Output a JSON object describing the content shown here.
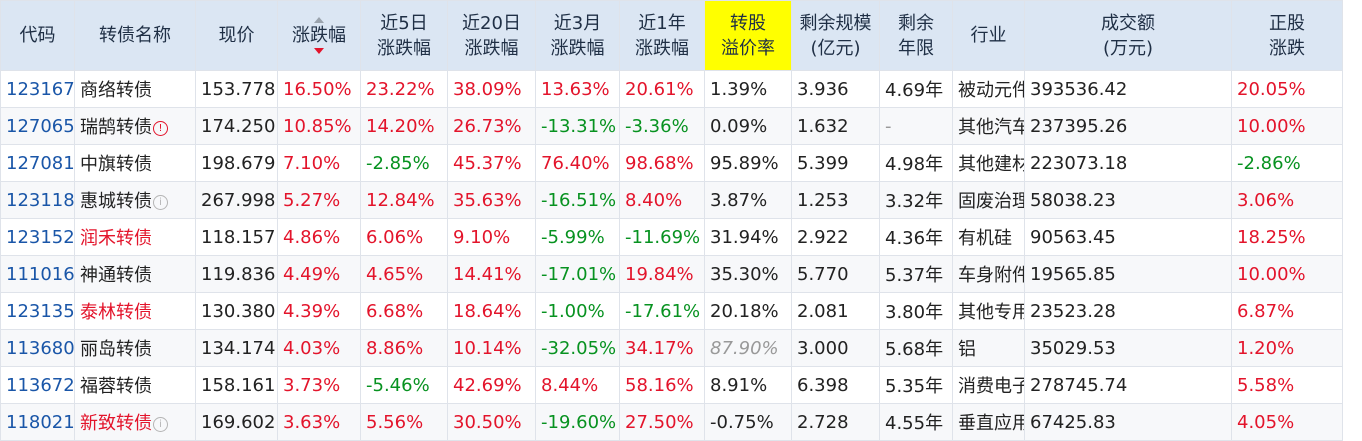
{
  "headers": {
    "code": "代码",
    "name": "转债名称",
    "price": "现价",
    "chg": "涨跌幅",
    "chg5d_1": "近5日",
    "chg5d_2": "涨跌幅",
    "chg20d_1": "近20日",
    "chg20d_2": "涨跌幅",
    "chg3m_1": "近3月",
    "chg3m_2": "涨跌幅",
    "chg1y_1": "近1年",
    "chg1y_2": "涨跌幅",
    "prem_1": "转股",
    "prem_2": "溢价率",
    "scale_1": "剩余规模",
    "scale_2": "(亿元)",
    "term_1": "剩余",
    "term_2": "年限",
    "industry": "行业",
    "volume_1": "成交额",
    "volume_2": "(万元)",
    "stock_chg_1": "正股",
    "stock_chg_2": "涨跌"
  },
  "rows": [
    {
      "code": "123167",
      "name": "商络转债",
      "name_color": "normal",
      "badge": "",
      "price": "153.778",
      "chg": "16.50%",
      "chg5d": "23.22%",
      "chg20d": "38.09%",
      "chg3m": "13.63%",
      "chg1y": "20.61%",
      "premium": "1.39%",
      "premium_style": "normal",
      "scale": "3.936",
      "term": "4.69年",
      "industry": "被动元件",
      "volume": "393536.42",
      "stock_chg": "20.05%"
    },
    {
      "code": "127065",
      "name": "瑞鹄转债",
      "name_color": "normal",
      "badge": "red",
      "price": "174.250",
      "chg": "10.85%",
      "chg5d": "14.20%",
      "chg20d": "26.73%",
      "chg3m": "-13.31%",
      "chg1y": "-3.36%",
      "premium": "0.09%",
      "premium_style": "normal",
      "scale": "1.632",
      "term": "-",
      "industry": "其他汽车零部件",
      "volume": "237395.26",
      "stock_chg": "10.00%"
    },
    {
      "code": "127081",
      "name": "中旗转债",
      "name_color": "normal",
      "badge": "",
      "price": "198.679",
      "chg": "7.10%",
      "chg5d": "-2.85%",
      "chg20d": "45.37%",
      "chg3m": "76.40%",
      "chg1y": "98.68%",
      "premium": "95.89%",
      "premium_style": "normal",
      "scale": "5.399",
      "term": "4.98年",
      "industry": "其他建材",
      "volume": "223073.18",
      "stock_chg": "-2.86%"
    },
    {
      "code": "123118",
      "name": "惠城转债",
      "name_color": "normal",
      "badge": "grey",
      "price": "267.998",
      "chg": "5.27%",
      "chg5d": "12.84%",
      "chg20d": "35.63%",
      "chg3m": "-16.51%",
      "chg1y": "8.40%",
      "premium": "3.87%",
      "premium_style": "normal",
      "scale": "1.253",
      "term": "3.32年",
      "industry": "固废治理",
      "volume": "58038.23",
      "stock_chg": "3.06%"
    },
    {
      "code": "123152",
      "name": "润禾转债",
      "name_color": "red",
      "badge": "",
      "price": "118.157",
      "chg": "4.86%",
      "chg5d": "6.06%",
      "chg20d": "9.10%",
      "chg3m": "-5.99%",
      "chg1y": "-11.69%",
      "premium": "31.94%",
      "premium_style": "normal",
      "scale": "2.922",
      "term": "4.36年",
      "industry": "有机硅",
      "volume": "90563.45",
      "stock_chg": "18.25%"
    },
    {
      "code": "111016",
      "name": "神通转债",
      "name_color": "normal",
      "badge": "",
      "price": "119.836",
      "chg": "4.49%",
      "chg5d": "4.65%",
      "chg20d": "14.41%",
      "chg3m": "-17.01%",
      "chg1y": "19.84%",
      "premium": "35.30%",
      "premium_style": "normal",
      "scale": "5.770",
      "term": "5.37年",
      "industry": "车身附件及饰件",
      "volume": "19565.85",
      "stock_chg": "10.00%"
    },
    {
      "code": "123135",
      "name": "泰林转债",
      "name_color": "red",
      "badge": "",
      "price": "130.380",
      "chg": "4.39%",
      "chg5d": "6.68%",
      "chg20d": "18.64%",
      "chg3m": "-1.00%",
      "chg1y": "-17.61%",
      "premium": "20.18%",
      "premium_style": "normal",
      "scale": "2.081",
      "term": "3.80年",
      "industry": "其他专用设备",
      "volume": "23523.28",
      "stock_chg": "6.87%"
    },
    {
      "code": "113680",
      "name": "丽岛转债",
      "name_color": "normal",
      "badge": "",
      "price": "134.174",
      "chg": "4.03%",
      "chg5d": "8.86%",
      "chg20d": "10.14%",
      "chg3m": "-32.05%",
      "chg1y": "34.17%",
      "premium": "87.90%",
      "premium_style": "gray",
      "scale": "3.000",
      "term": "5.68年",
      "industry": "铝",
      "volume": "35029.53",
      "stock_chg": "1.20%"
    },
    {
      "code": "113672",
      "name": "福蓉转债",
      "name_color": "normal",
      "badge": "",
      "price": "158.161",
      "chg": "3.73%",
      "chg5d": "-5.46%",
      "chg20d": "42.69%",
      "chg3m": "8.44%",
      "chg1y": "58.16%",
      "premium": "8.91%",
      "premium_style": "normal",
      "scale": "6.398",
      "term": "5.35年",
      "industry": "消费电子零部件及组装",
      "volume": "278745.74",
      "stock_chg": "5.58%"
    },
    {
      "code": "118021",
      "name": "新致转债",
      "name_color": "red",
      "badge": "grey",
      "price": "169.602",
      "chg": "3.63%",
      "chg5d": "5.56%",
      "chg20d": "30.50%",
      "chg3m": "-19.60%",
      "chg1y": "27.50%",
      "premium": "-0.75%",
      "premium_style": "normal",
      "scale": "2.728",
      "term": "4.55年",
      "industry": "垂直应用软件",
      "volume": "67425.83",
      "stock_chg": "4.05%"
    }
  ],
  "badge_glyphs": {
    "red": "!",
    "grey": "i"
  },
  "colors": {
    "up": "#e3142b",
    "down": "#079220",
    "code": "#1a56a8",
    "header_bg": "#dbe6f3",
    "highlight": "#ffff00"
  }
}
